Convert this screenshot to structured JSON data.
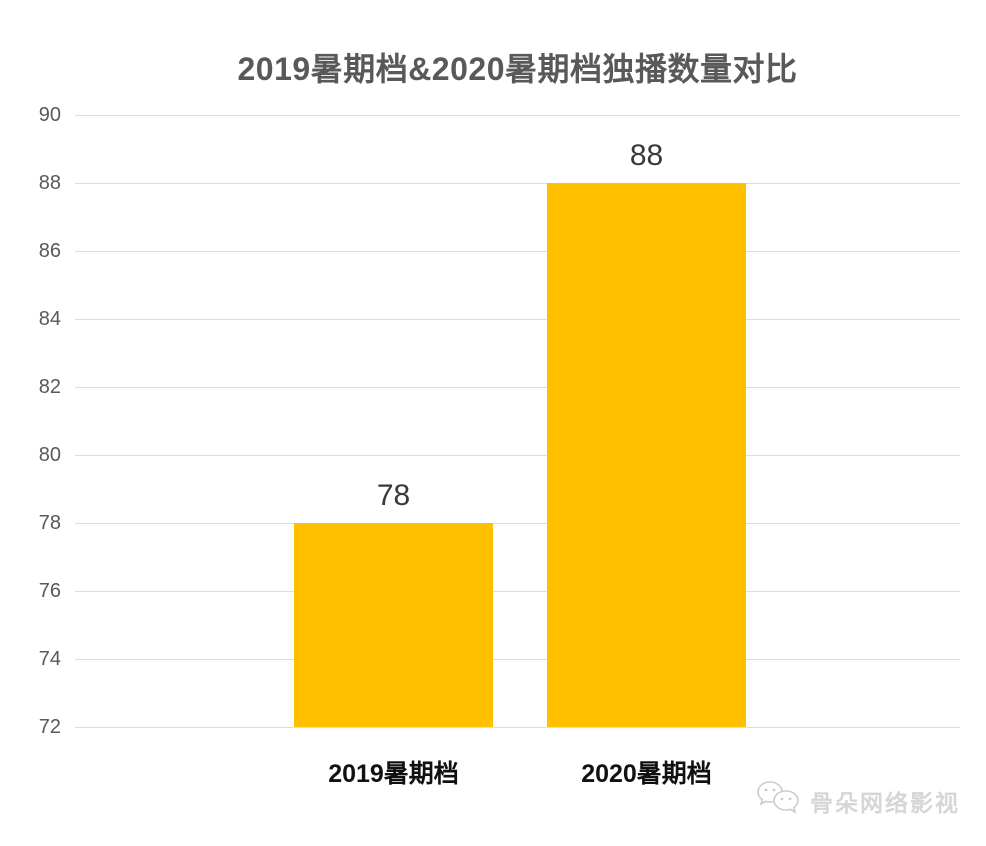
{
  "chart_data": {
    "type": "bar",
    "title": "2019暑期档&2020暑期档独播数量对比",
    "categories": [
      "2019暑期档",
      "2020暑期档"
    ],
    "values": [
      78,
      88
    ],
    "xlabel": "",
    "ylabel": "",
    "ylim": [
      72,
      90
    ],
    "yticks": [
      90,
      88,
      86,
      84,
      82,
      80,
      78,
      76,
      74,
      72
    ],
    "grid": true,
    "legend": false,
    "bar_color": "#FFC000"
  },
  "watermark": {
    "text": "骨朵网络影视",
    "icon": "wechat-chat-bubbles-icon"
  },
  "colors": {
    "background": "#ffffff",
    "title": "#595959",
    "axis_label": "#595959",
    "gridline": "#dedede",
    "value_label": "#3a3a3a",
    "category_label": "#111111",
    "watermark": "#d6d6d6",
    "watermark_icon_stroke": "#cccccc"
  }
}
